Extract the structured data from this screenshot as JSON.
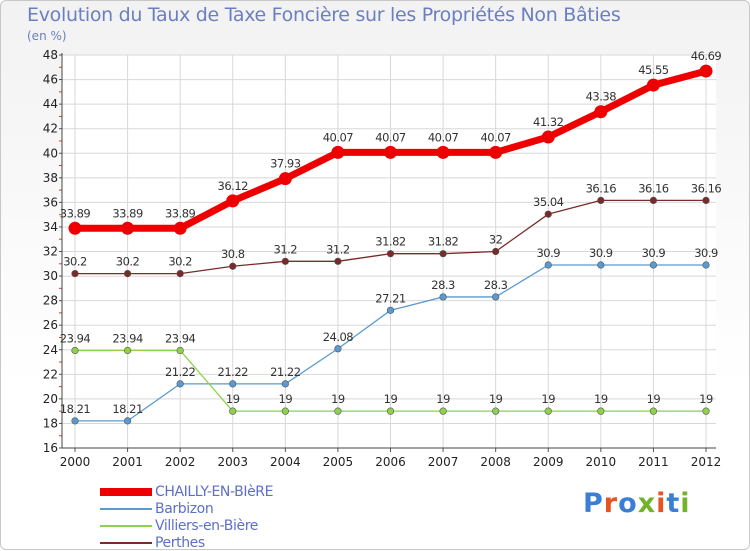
{
  "title": "Evolution du Taux de Taxe Foncière sur les Propriétés Non Bâties",
  "unit_label": "(en %)",
  "logo": {
    "text": "Proxiti",
    "colors": [
      "#3a7fd5",
      "#e8541f",
      "#3a7fd5",
      "#72b32b",
      "#e8541f",
      "#3a7fd5",
      "#72b32b"
    ]
  },
  "chart_data": {
    "type": "line",
    "title": "Evolution du Taux de Taxe Foncière sur les Propriétés Non Bâties",
    "ylabel": "(en %)",
    "xlabel": "",
    "x": [
      "2000",
      "2001",
      "2002",
      "2003",
      "2004",
      "2005",
      "2006",
      "2007",
      "2008",
      "2009",
      "2010",
      "2011",
      "2012"
    ],
    "ylim": [
      16,
      48
    ],
    "yticks": [
      "16",
      "18",
      "20",
      "22",
      "24",
      "26",
      "28",
      "30",
      "32",
      "34",
      "36",
      "38",
      "40",
      "42",
      "44",
      "46",
      "48"
    ],
    "grid": true,
    "legend_position": "bottom-left",
    "series": [
      {
        "name": "CHAILLY-EN-BIèRE",
        "color": "#ee0000",
        "emphasis": true,
        "values": [
          33.89,
          33.89,
          33.89,
          36.12,
          37.93,
          40.07,
          40.07,
          40.07,
          40.07,
          41.32,
          43.38,
          45.55,
          46.69
        ],
        "labels": [
          "33.89",
          "33.89",
          "33.89",
          "36.12",
          "37.93",
          "40.07",
          "40.07",
          "40.07",
          "40.07",
          "41.32",
          "43.38",
          "45.55",
          "46.69"
        ]
      },
      {
        "name": "Barbizon",
        "color": "#5a9ad2",
        "values": [
          18.21,
          18.21,
          21.22,
          21.22,
          21.22,
          24.08,
          27.21,
          28.3,
          28.3,
          30.9,
          30.9,
          30.9,
          30.9
        ],
        "labels": [
          "18.21",
          "18.21",
          "21.22",
          "21.22",
          "21.22",
          "24.08",
          "27.21",
          "28.3",
          "28.3",
          "30.9",
          "30.9",
          "30.9",
          "30.9"
        ]
      },
      {
        "name": "Villiers-en-Bière",
        "color": "#8fd24a",
        "values": [
          23.94,
          23.94,
          23.94,
          19,
          19,
          19,
          19,
          19,
          19,
          19,
          19,
          19,
          19
        ],
        "labels": [
          "23.94",
          "23.94",
          "23.94",
          "19",
          "19",
          "19",
          "19",
          "19",
          "19",
          "19",
          "19",
          "19",
          "19"
        ]
      },
      {
        "name": "Perthes",
        "color": "#7a2a2a",
        "values": [
          30.2,
          30.2,
          30.2,
          30.8,
          31.2,
          31.2,
          31.82,
          31.82,
          32,
          35.04,
          36.16,
          36.16,
          36.16
        ],
        "labels": [
          "30.2",
          "30.2",
          "30.2",
          "30.8",
          "31.2",
          "31.2",
          "31.82",
          "31.82",
          "32",
          "35.04",
          "36.16",
          "36.16",
          "36.16"
        ]
      }
    ]
  }
}
